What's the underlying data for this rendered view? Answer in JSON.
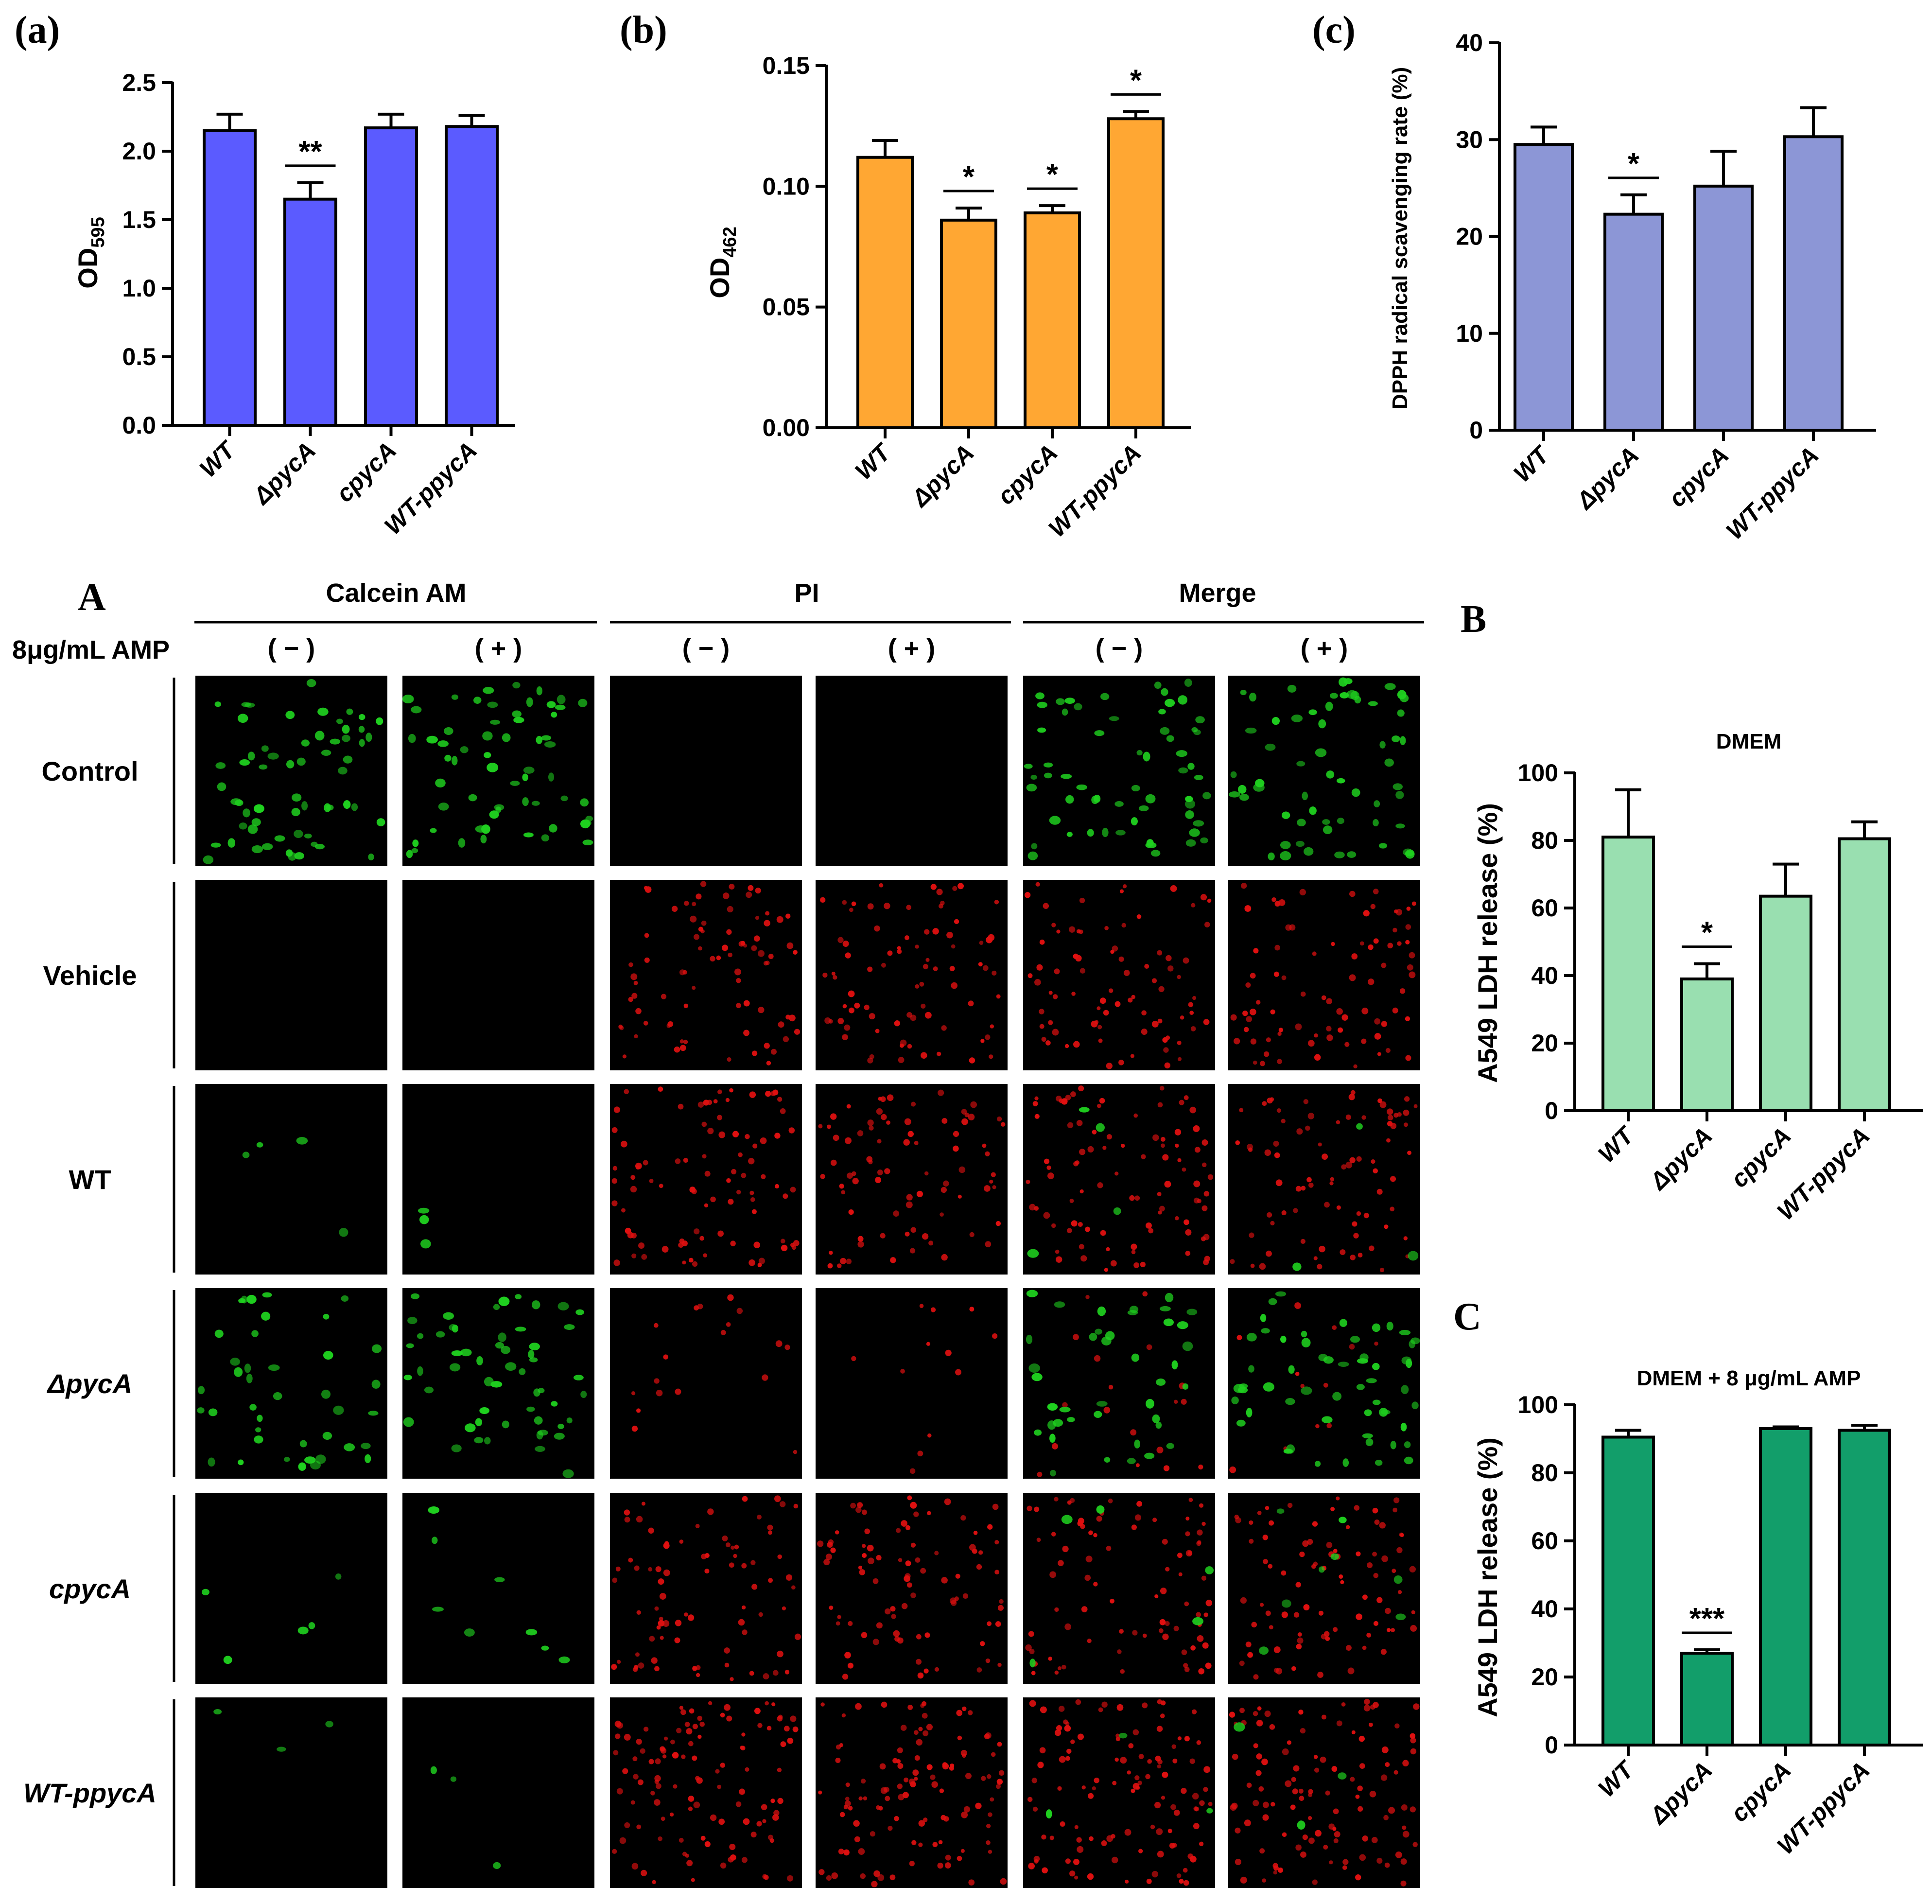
{
  "panel_labels": {
    "a": "(a)",
    "b": "(b)",
    "c": "(c)",
    "A": "A",
    "B": "B",
    "C": "C"
  },
  "chart_data": [
    {
      "id": "a",
      "type": "bar",
      "categories": [
        "WT",
        "ΔpycA",
        "cpycA",
        "WT-ppycA"
      ],
      "values": [
        2.15,
        1.65,
        2.17,
        2.18
      ],
      "errors": [
        0.12,
        0.12,
        0.1,
        0.08
      ],
      "significance": [
        "",
        "**",
        "",
        ""
      ],
      "ylabel": "OD",
      "ylabel_sub": "595",
      "ylim": [
        0,
        2.5
      ],
      "yticks": [
        "0.0",
        "0.5",
        "1.0",
        "1.5",
        "2.0",
        "2.5"
      ],
      "color": "#5b5bff"
    },
    {
      "id": "b",
      "type": "bar",
      "categories": [
        "WT",
        "ΔpycA",
        "cpycA",
        "WT-ppycA"
      ],
      "values": [
        0.112,
        0.086,
        0.089,
        0.128
      ],
      "errors": [
        0.007,
        0.005,
        0.003,
        0.003
      ],
      "significance": [
        "",
        "*",
        "*",
        "*"
      ],
      "ylabel": "OD",
      "ylabel_sub": "462",
      "ylim": [
        0,
        0.15
      ],
      "yticks": [
        "0.00",
        "0.05",
        "0.10",
        "0.15"
      ],
      "color": "#ffa733"
    },
    {
      "id": "c",
      "type": "bar",
      "categories": [
        "WT",
        "ΔpycA",
        "cpycA",
        "WT-ppycA"
      ],
      "values": [
        29.5,
        22.3,
        25.2,
        30.3
      ],
      "errors": [
        1.8,
        2.0,
        3.6,
        3.0
      ],
      "significance": [
        "",
        "*",
        "",
        ""
      ],
      "ylabel": "DPPH radical scavenging rate (%)",
      "ylim": [
        0,
        40
      ],
      "yticks": [
        "0",
        "10",
        "20",
        "30",
        "40"
      ],
      "color": "#8c96d6"
    },
    {
      "id": "B",
      "type": "bar",
      "title": "DMEM",
      "categories": [
        "WT",
        "ΔpycA",
        "cpycA",
        "WT-ppycA"
      ],
      "values": [
        81,
        39,
        63.5,
        80.5
      ],
      "errors": [
        14,
        4.5,
        9.5,
        5
      ],
      "significance": [
        "",
        "*",
        "",
        ""
      ],
      "ylabel": "A549 LDH release (%)",
      "ylim": [
        0,
        100
      ],
      "yticks": [
        "0",
        "20",
        "40",
        "60",
        "80",
        "100"
      ],
      "color": "#99dfb0"
    },
    {
      "id": "C",
      "type": "bar",
      "title": "DMEM + 8 μg/mL AMP",
      "categories": [
        "WT",
        "ΔpycA",
        "cpycA",
        "WT-ppycA"
      ],
      "values": [
        90.5,
        27,
        93,
        92.5
      ],
      "errors": [
        2,
        1,
        0.5,
        1.5
      ],
      "significance": [
        "",
        "***",
        "",
        ""
      ],
      "ylabel": "A549 LDH release (%)",
      "ylim": [
        0,
        100
      ],
      "yticks": [
        "0",
        "20",
        "40",
        "60",
        "80",
        "100"
      ],
      "color": "#129e6a"
    }
  ],
  "microscopy": {
    "label": "A",
    "amp_label": "8μg/mL AMP",
    "groups": [
      "Calcein AM",
      "PI",
      "Merge"
    ],
    "conditions": [
      "( − )",
      "( + )"
    ],
    "rows": [
      "Control",
      "Vehicle",
      "WT",
      "ΔpycA",
      "cpycA",
      "WT-ppycA"
    ],
    "green_density": [
      [
        60,
        60
      ],
      [
        0,
        0
      ],
      [
        4,
        3
      ],
      [
        40,
        55
      ],
      [
        5,
        8
      ],
      [
        3,
        3
      ]
    ],
    "red_density": [
      [
        0,
        0
      ],
      [
        80,
        80
      ],
      [
        90,
        80
      ],
      [
        18,
        12
      ],
      [
        80,
        85
      ],
      [
        110,
        110
      ]
    ],
    "green_color": "#1fd11f",
    "red_color": "#e01010",
    "background_color": "#000000"
  }
}
